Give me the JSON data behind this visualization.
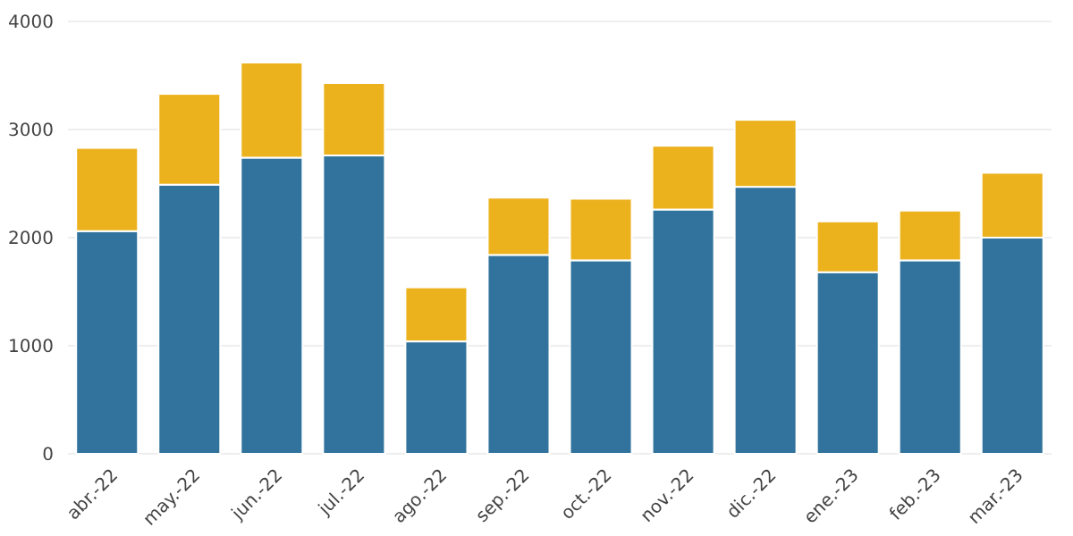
{
  "chart_data": {
    "type": "bar",
    "stacked": true,
    "categories": [
      "abr.-22",
      "may.-22",
      "jun.-22",
      "jul.-22",
      "ago.-22",
      "sep.-22",
      "oct.-22",
      "nov.-22",
      "dic.-22",
      "ene.-23",
      "feb.-23",
      "mar.-23"
    ],
    "series": [
      {
        "color": "#31739c",
        "values": [
          2060,
          2490,
          2740,
          2760,
          1040,
          1840,
          1790,
          2260,
          2470,
          1680,
          1790,
          2000
        ]
      },
      {
        "color": "#ecb21e",
        "values": [
          770,
          840,
          880,
          670,
          500,
          530,
          570,
          590,
          620,
          470,
          460,
          600
        ]
      }
    ],
    "ylim": [
      0,
      4000
    ],
    "yticks": [
      0,
      1000,
      2000,
      3000,
      4000
    ],
    "grid": "y"
  }
}
